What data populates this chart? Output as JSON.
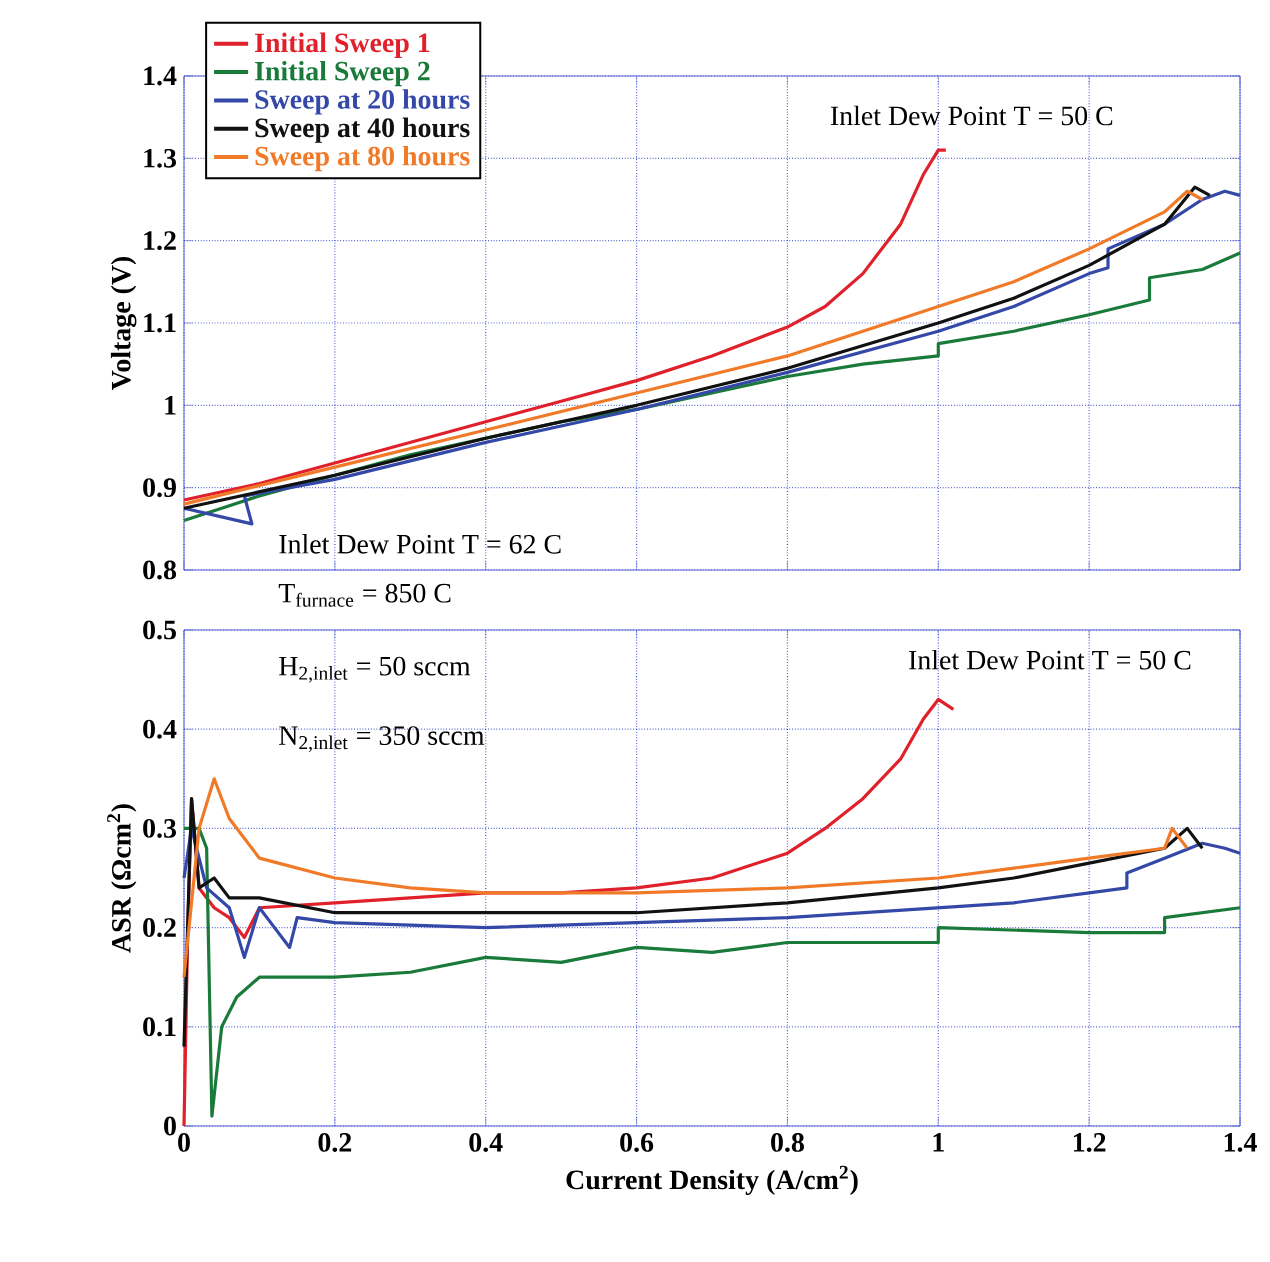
{
  "chart_data": [
    {
      "type": "line",
      "ylabel": "Voltage (V)",
      "xlim": [
        0,
        1.4
      ],
      "ylim": [
        0.8,
        1.4
      ],
      "xticks": [
        0,
        0.2,
        0.4,
        0.6,
        0.8,
        1,
        1.2,
        1.4
      ],
      "yticks": [
        0.8,
        0.9,
        1,
        1.1,
        1.2,
        1.3,
        1.4
      ],
      "tick_labels": "y",
      "grid": true,
      "legend": "top left",
      "annotations": [
        "Inlet Dew Point T = 50 C",
        "Inlet Dew Point T = 62 C"
      ],
      "series": [
        {
          "name": "Initial Sweep 1",
          "color": "#e0202a",
          "x": [
            0,
            0.1,
            0.2,
            0.3,
            0.4,
            0.5,
            0.6,
            0.7,
            0.8,
            0.85,
            0.9,
            0.95,
            0.98,
            1.0,
            1.01
          ],
          "values": [
            0.885,
            0.905,
            0.93,
            0.955,
            0.98,
            1.005,
            1.03,
            1.06,
            1.095,
            1.12,
            1.16,
            1.22,
            1.28,
            1.31,
            1.31
          ]
        },
        {
          "name": "Initial Sweep 2",
          "color": "#1a7a3a",
          "x": [
            0,
            0.05,
            0.1,
            0.2,
            0.3,
            0.4,
            0.5,
            0.6,
            0.7,
            0.8,
            0.9,
            1.0,
            1.0,
            1.1,
            1.2,
            1.28,
            1.28,
            1.35,
            1.4
          ],
          "values": [
            0.86,
            0.875,
            0.89,
            0.915,
            0.94,
            0.96,
            0.98,
            0.995,
            1.015,
            1.035,
            1.05,
            1.06,
            1.075,
            1.09,
            1.11,
            1.128,
            1.155,
            1.165,
            1.185
          ]
        },
        {
          "name": "Sweep at 20 hours",
          "color": "#3448a8",
          "x": [
            0,
            0.09,
            0.08,
            0.2,
            0.4,
            0.6,
            0.8,
            1.0,
            1.1,
            1.2,
            1.225,
            1.225,
            1.3,
            1.35,
            1.38,
            1.4
          ],
          "values": [
            0.875,
            0.856,
            0.89,
            0.91,
            0.955,
            0.995,
            1.04,
            1.09,
            1.12,
            1.16,
            1.167,
            1.19,
            1.22,
            1.25,
            1.26,
            1.255
          ]
        },
        {
          "name": "Sweep at 40 hours",
          "color": "#111111",
          "x": [
            0,
            0.2,
            0.4,
            0.6,
            0.8,
            1.0,
            1.1,
            1.2,
            1.3,
            1.34,
            1.36
          ],
          "values": [
            0.875,
            0.915,
            0.96,
            1.0,
            1.045,
            1.1,
            1.13,
            1.17,
            1.22,
            1.265,
            1.255
          ]
        },
        {
          "name": "Sweep at 80 hours",
          "color": "#f07a28",
          "x": [
            0,
            0.2,
            0.4,
            0.6,
            0.8,
            1.0,
            1.1,
            1.2,
            1.3,
            1.33,
            1.35
          ],
          "values": [
            0.88,
            0.925,
            0.97,
            1.015,
            1.06,
            1.12,
            1.15,
            1.19,
            1.235,
            1.26,
            1.25
          ]
        }
      ]
    },
    {
      "type": "line",
      "xlabel": "Current Density (A/cm$^{2}$)",
      "ylabel": "ASR (Ωcm$^{2}$)",
      "xlim": [
        0,
        1.4
      ],
      "ylim": [
        0,
        0.5
      ],
      "xticks": [
        0,
        0.2,
        0.4,
        0.6,
        0.8,
        1,
        1.2,
        1.4
      ],
      "yticks": [
        0,
        0.1,
        0.2,
        0.3,
        0.4,
        0.5
      ],
      "grid": true,
      "annotations": [
        "T$_{furnace}$ = 850 C",
        "H$_{2,inlet}$ = 50 sccm",
        "N$_{2,inlet}$ = 350 sccm",
        "Inlet Dew Point T = 50 C"
      ],
      "series": [
        {
          "color": "#e0202a",
          "x": [
            0,
            0.005,
            0.01,
            0.02,
            0.04,
            0.06,
            0.08,
            0.1,
            0.2,
            0.3,
            0.4,
            0.5,
            0.6,
            0.7,
            0.8,
            0.85,
            0.9,
            0.95,
            0.98,
            1.0,
            1.02
          ],
          "values": [
            0,
            0.2,
            0.33,
            0.24,
            0.22,
            0.21,
            0.19,
            0.22,
            0.225,
            0.23,
            0.235,
            0.235,
            0.24,
            0.25,
            0.275,
            0.3,
            0.33,
            0.37,
            0.41,
            0.43,
            0.42
          ]
        },
        {
          "color": "#1a7a3a",
          "x": [
            0,
            0.02,
            0.03,
            0.037,
            0.05,
            0.07,
            0.1,
            0.2,
            0.3,
            0.4,
            0.5,
            0.6,
            0.7,
            0.8,
            0.95,
            1.0,
            1.0,
            1.2,
            1.3,
            1.3,
            1.4
          ],
          "values": [
            0.3,
            0.3,
            0.28,
            0.01,
            0.1,
            0.13,
            0.15,
            0.15,
            0.155,
            0.17,
            0.165,
            0.18,
            0.175,
            0.185,
            0.185,
            0.185,
            0.2,
            0.195,
            0.195,
            0.21,
            0.22
          ]
        },
        {
          "color": "#3448a8",
          "x": [
            0,
            0.01,
            0.03,
            0.06,
            0.08,
            0.1,
            0.12,
            0.14,
            0.15,
            0.2,
            0.4,
            0.6,
            0.8,
            1.0,
            1.1,
            1.2,
            1.25,
            1.25,
            1.3,
            1.35,
            1.38,
            1.4
          ],
          "values": [
            0.25,
            0.3,
            0.24,
            0.22,
            0.17,
            0.22,
            0.2,
            0.18,
            0.21,
            0.205,
            0.2,
            0.205,
            0.21,
            0.22,
            0.225,
            0.235,
            0.24,
            0.255,
            0.27,
            0.285,
            0.28,
            0.275
          ]
        },
        {
          "color": "#111111",
          "x": [
            0,
            0.01,
            0.02,
            0.04,
            0.06,
            0.1,
            0.2,
            0.4,
            0.6,
            0.8,
            1.0,
            1.1,
            1.2,
            1.3,
            1.33,
            1.35
          ],
          "values": [
            0.08,
            0.33,
            0.24,
            0.25,
            0.23,
            0.23,
            0.215,
            0.215,
            0.215,
            0.225,
            0.24,
            0.25,
            0.265,
            0.28,
            0.3,
            0.28
          ]
        },
        {
          "color": "#f07a28",
          "x": [
            0,
            0.02,
            0.04,
            0.06,
            0.1,
            0.2,
            0.3,
            0.4,
            0.6,
            0.8,
            1.0,
            1.1,
            1.2,
            1.3,
            1.31,
            1.33
          ],
          "values": [
            0.15,
            0.3,
            0.35,
            0.31,
            0.27,
            0.25,
            0.24,
            0.235,
            0.235,
            0.24,
            0.25,
            0.26,
            0.27,
            0.28,
            0.3,
            0.28
          ]
        }
      ]
    }
  ]
}
